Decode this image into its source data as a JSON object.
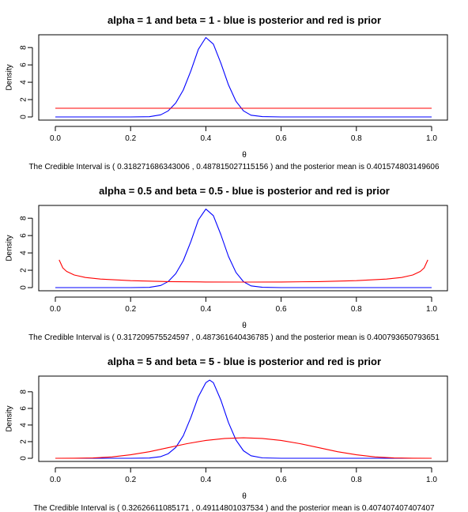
{
  "chart_data": [
    {
      "type": "line",
      "title": "alpha =  1 and beta =  1 - blue is posterior and red is prior",
      "xlabel": "θ",
      "ylabel": "Density",
      "xlim": [
        0,
        1
      ],
      "ylim": [
        0,
        9.2
      ],
      "xticks": [
        "0.0",
        "0.2",
        "0.4",
        "0.6",
        "0.8",
        "1.0"
      ],
      "yticks": [
        "0",
        "2",
        "4",
        "6",
        "8"
      ],
      "grid": false,
      "caption": "The Credible Interval is ( 0.318271686343006 , 0.487815027115156 ) and the posterior mean is 0.401574803149606",
      "series": [
        {
          "color": "#0000ff",
          "x": [
            0,
            0.2,
            0.25,
            0.28,
            0.3,
            0.32,
            0.34,
            0.36,
            0.38,
            0.4,
            0.42,
            0.44,
            0.46,
            0.48,
            0.5,
            0.52,
            0.55,
            0.6,
            1.0
          ],
          "y": [
            0,
            0,
            0.03,
            0.25,
            0.7,
            1.6,
            3.1,
            5.3,
            7.8,
            9.15,
            8.4,
            6.2,
            3.7,
            1.8,
            0.7,
            0.2,
            0.04,
            0,
            0
          ]
        },
        {
          "color": "#ff0000",
          "x": [
            0,
            1
          ],
          "y": [
            1,
            1
          ]
        }
      ]
    },
    {
      "type": "line",
      "title": "alpha =  0.5 and beta =  0.5 - blue is posterior and red is prior",
      "xlabel": "θ",
      "ylabel": "Density",
      "xlim": [
        0,
        1
      ],
      "ylim": [
        0,
        9.2
      ],
      "xticks": [
        "0.0",
        "0.2",
        "0.4",
        "0.6",
        "0.8",
        "1.0"
      ],
      "yticks": [
        "0",
        "2",
        "4",
        "6",
        "8"
      ],
      "grid": false,
      "caption": "The Credible Interval is ( 0.317209575524597 , 0.487361640436785 ) and the posterior mean is 0.400793650793651",
      "series": [
        {
          "color": "#0000ff",
          "x": [
            0,
            0.2,
            0.25,
            0.28,
            0.3,
            0.32,
            0.34,
            0.36,
            0.38,
            0.4,
            0.42,
            0.44,
            0.46,
            0.48,
            0.5,
            0.52,
            0.55,
            0.6,
            1.0
          ],
          "y": [
            0,
            0,
            0.03,
            0.25,
            0.7,
            1.6,
            3.1,
            5.3,
            7.8,
            9.05,
            8.3,
            6.1,
            3.6,
            1.75,
            0.68,
            0.2,
            0.04,
            0,
            0
          ]
        },
        {
          "color": "#ff0000",
          "x": [
            0.01,
            0.02,
            0.03,
            0.05,
            0.08,
            0.12,
            0.2,
            0.3,
            0.4,
            0.5,
            0.6,
            0.7,
            0.8,
            0.88,
            0.92,
            0.95,
            0.97,
            0.98,
            0.99
          ],
          "y": [
            3.2,
            2.27,
            1.87,
            1.46,
            1.17,
            0.98,
            0.8,
            0.69,
            0.65,
            0.64,
            0.65,
            0.69,
            0.8,
            0.98,
            1.17,
            1.46,
            1.87,
            2.27,
            3.2
          ]
        }
      ]
    },
    {
      "type": "line",
      "title": "alpha =  5 and beta =  5 - blue is posterior and red is prior",
      "xlabel": "θ",
      "ylabel": "Density",
      "xlim": [
        0,
        1
      ],
      "ylim": [
        0,
        9.6
      ],
      "xticks": [
        "0.0",
        "0.2",
        "0.4",
        "0.6",
        "0.8",
        "1.0"
      ],
      "yticks": [
        "0",
        "2",
        "4",
        "6",
        "8"
      ],
      "grid": false,
      "caption": "The Credible Interval is ( 0.32626611085171 , 0.49114801037534 ) and the posterior mean is 0.407407407407407",
      "series": [
        {
          "color": "#0000ff",
          "x": [
            0,
            0.2,
            0.25,
            0.28,
            0.3,
            0.32,
            0.34,
            0.36,
            0.38,
            0.4,
            0.41,
            0.42,
            0.44,
            0.46,
            0.48,
            0.5,
            0.52,
            0.55,
            0.6,
            1.0
          ],
          "y": [
            0,
            0,
            0.03,
            0.2,
            0.55,
            1.3,
            2.7,
            4.9,
            7.4,
            9.1,
            9.4,
            9.1,
            7.0,
            4.3,
            2.2,
            0.9,
            0.3,
            0.05,
            0,
            0
          ]
        },
        {
          "color": "#ff0000",
          "x": [
            0,
            0.05,
            0.1,
            0.15,
            0.2,
            0.25,
            0.3,
            0.35,
            0.4,
            0.45,
            0.5,
            0.55,
            0.6,
            0.65,
            0.7,
            0.75,
            0.8,
            0.85,
            0.9,
            0.95,
            1.0
          ],
          "y": [
            0,
            0.005,
            0.04,
            0.16,
            0.42,
            0.79,
            1.27,
            1.76,
            2.15,
            2.39,
            2.46,
            2.39,
            2.15,
            1.76,
            1.27,
            0.79,
            0.42,
            0.16,
            0.04,
            0.005,
            0
          ]
        }
      ]
    }
  ]
}
